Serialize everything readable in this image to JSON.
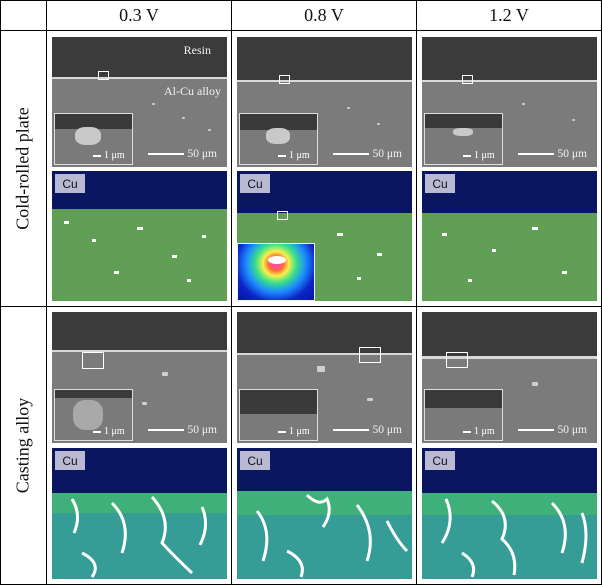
{
  "columns": [
    "0.3 V",
    "0.8 V",
    "1.2 V"
  ],
  "rows": [
    "Cold-rolled plate",
    "Casting alloy"
  ],
  "labels": {
    "resin": "Resin",
    "alloy": "Al-Cu alloy",
    "scale_main": "50 μm",
    "scale_inset": "1 μm",
    "element": "Cu"
  },
  "colors": {
    "resin": "#3b3b3b",
    "alloy": "#7b7b7b",
    "eds_background": "#0a1660",
    "eds_alloy": "#5f9a4a",
    "eds_cu_rich": "#ffffff"
  },
  "figure": {
    "type": "image_grid",
    "panel_kinds": [
      "SEM cross-section with inset",
      "Cu EDS map"
    ]
  }
}
